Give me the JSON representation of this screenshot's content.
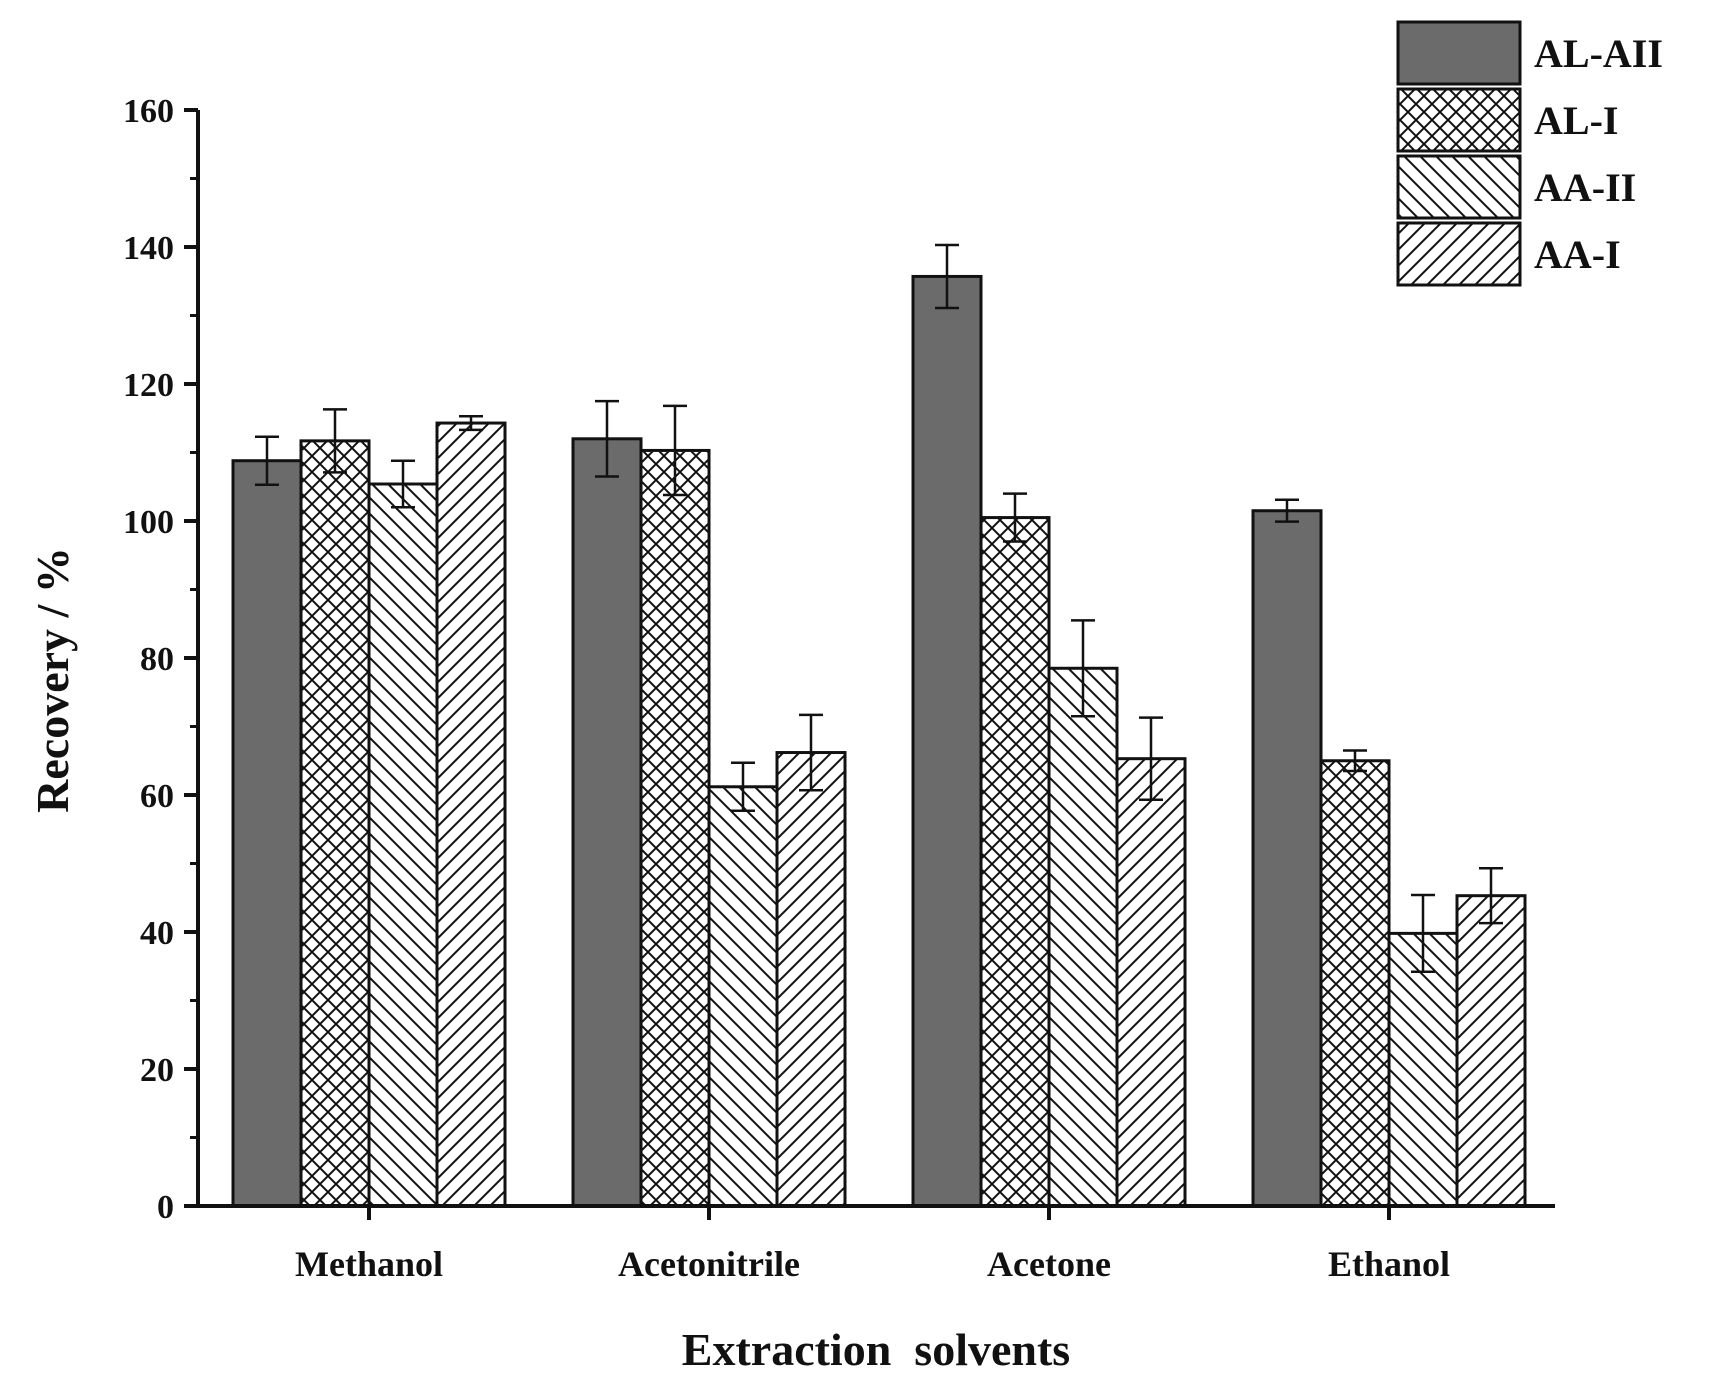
{
  "chart_data": {
    "type": "bar",
    "title": "",
    "xlabel": "Extraction  solvents",
    "ylabel": "Recovery / %",
    "ylim": [
      0,
      160
    ],
    "yticks": [
      0,
      20,
      40,
      60,
      80,
      100,
      120,
      140,
      160
    ],
    "grid": false,
    "legend_position": "top-right",
    "categories": [
      "Methanol",
      "Acetonitrile",
      "Acetone",
      "Ethanol"
    ],
    "series": [
      {
        "name": "AL-AII",
        "pattern": "solid",
        "fill": "#6b6b6b",
        "values": [
          108.8,
          112.0,
          135.7,
          101.5
        ],
        "errors": [
          3.5,
          5.5,
          4.6,
          1.6
        ]
      },
      {
        "name": "AL-I",
        "pattern": "crosshatch",
        "fill": "#ffffff",
        "values": [
          111.7,
          110.3,
          100.5,
          65.0
        ],
        "errors": [
          4.6,
          6.5,
          3.5,
          1.5
        ]
      },
      {
        "name": "AA-II",
        "pattern": "backslash",
        "fill": "#ffffff",
        "values": [
          105.4,
          61.2,
          78.5,
          39.8
        ],
        "errors": [
          3.4,
          3.5,
          7.0,
          5.6
        ]
      },
      {
        "name": "AA-I",
        "pattern": "slash",
        "fill": "#ffffff",
        "values": [
          114.3,
          66.2,
          65.3,
          45.3
        ],
        "errors": [
          1.0,
          5.5,
          6.0,
          4.0
        ]
      }
    ]
  }
}
